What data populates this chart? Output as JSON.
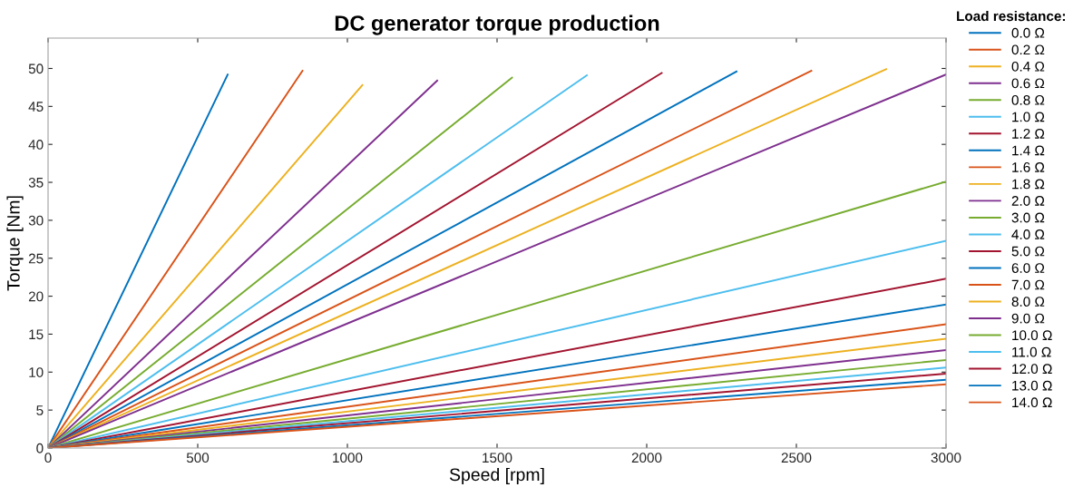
{
  "chart_data": {
    "type": "line",
    "title": "DC generator torque production",
    "xlabel": "Speed [rpm]",
    "ylabel": "Torque [Nm]",
    "legend_title": "Load resistance:",
    "legend": "right",
    "grid": false,
    "marker": "none",
    "line_style": "solid",
    "xlim": [
      0,
      3000
    ],
    "ylim": [
      0,
      54
    ],
    "xticks": [
      0,
      500,
      1000,
      1500,
      2000,
      2500,
      3000
    ],
    "yticks": [
      0,
      5,
      10,
      15,
      20,
      25,
      30,
      35,
      40,
      45,
      50
    ],
    "series": [
      {
        "name": "0.0 Ω",
        "color": "#0072bd",
        "x": [
          0,
          600
        ],
        "values": [
          0,
          49.2
        ]
      },
      {
        "name": "0.2 Ω",
        "color": "#d95319",
        "x": [
          0,
          850
        ],
        "values": [
          0,
          49.7
        ]
      },
      {
        "name": "0.4 Ω",
        "color": "#edb120",
        "x": [
          0,
          1050
        ],
        "values": [
          0,
          47.8
        ]
      },
      {
        "name": "0.6 Ω",
        "color": "#7e2f8e",
        "x": [
          0,
          1300
        ],
        "values": [
          0,
          48.4
        ]
      },
      {
        "name": "0.8 Ω",
        "color": "#77ac30",
        "x": [
          0,
          1550
        ],
        "values": [
          0,
          48.8
        ]
      },
      {
        "name": "1.0 Ω",
        "color": "#4dbeee",
        "x": [
          0,
          1800
        ],
        "values": [
          0,
          49.1
        ]
      },
      {
        "name": "1.2 Ω",
        "color": "#a2142f",
        "x": [
          0,
          2050
        ],
        "values": [
          0,
          49.4
        ]
      },
      {
        "name": "1.4 Ω",
        "color": "#0072bd",
        "x": [
          0,
          2300
        ],
        "values": [
          0,
          49.6
        ]
      },
      {
        "name": "1.6 Ω",
        "color": "#d95319",
        "x": [
          0,
          2550
        ],
        "values": [
          0,
          49.7
        ]
      },
      {
        "name": "1.8 Ω",
        "color": "#edb120",
        "x": [
          0,
          2800
        ],
        "values": [
          0,
          49.9
        ]
      },
      {
        "name": "2.0 Ω",
        "color": "#7e2f8e",
        "x": [
          0,
          3000
        ],
        "values": [
          0,
          49.2
        ]
      },
      {
        "name": "3.0 Ω",
        "color": "#77ac30",
        "x": [
          0,
          3000
        ],
        "values": [
          0,
          35.1
        ]
      },
      {
        "name": "4.0 Ω",
        "color": "#4dbeee",
        "x": [
          0,
          3000
        ],
        "values": [
          0,
          27.3
        ]
      },
      {
        "name": "5.0 Ω",
        "color": "#a2142f",
        "x": [
          0,
          3000
        ],
        "values": [
          0,
          22.3
        ]
      },
      {
        "name": "6.0 Ω",
        "color": "#0072bd",
        "x": [
          0,
          3000
        ],
        "values": [
          0,
          18.9
        ]
      },
      {
        "name": "7.0 Ω",
        "color": "#d95319",
        "x": [
          0,
          3000
        ],
        "values": [
          0,
          16.3
        ]
      },
      {
        "name": "8.0 Ω",
        "color": "#edb120",
        "x": [
          0,
          3000
        ],
        "values": [
          0,
          14.4
        ]
      },
      {
        "name": "9.0 Ω",
        "color": "#7e2f8e",
        "x": [
          0,
          3000
        ],
        "values": [
          0,
          12.9
        ]
      },
      {
        "name": "10.0 Ω",
        "color": "#77ac30",
        "x": [
          0,
          3000
        ],
        "values": [
          0,
          11.6
        ]
      },
      {
        "name": "11.0 Ω",
        "color": "#4dbeee",
        "x": [
          0,
          3000
        ],
        "values": [
          0,
          10.6
        ]
      },
      {
        "name": "12.0 Ω",
        "color": "#a2142f",
        "x": [
          0,
          3000
        ],
        "values": [
          0,
          9.8
        ]
      },
      {
        "name": "13.0 Ω",
        "color": "#0072bd",
        "x": [
          0,
          3000
        ],
        "values": [
          0,
          9.0
        ]
      },
      {
        "name": "14.0 Ω",
        "color": "#d95319",
        "x": [
          0,
          3000
        ],
        "values": [
          0,
          8.4
        ]
      }
    ]
  }
}
